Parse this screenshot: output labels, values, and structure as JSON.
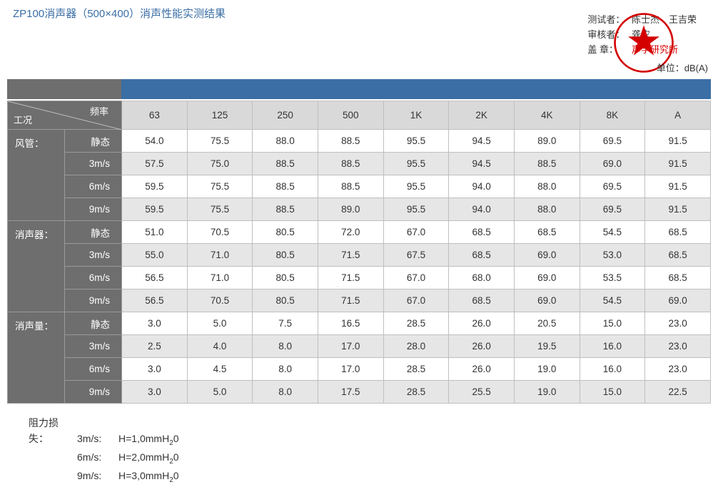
{
  "title": "ZP100消声器（500×400）消声性能实测结果",
  "header": {
    "tester_label": "测试者：",
    "tester_value": "陈士杰　王吉荣",
    "reviewer_label": "审核者：",
    "reviewer_value": "龚农",
    "seal_label": "盖 章：",
    "seal_value": "声学研究所"
  },
  "unit_label": "单位：dB(A)",
  "stamp": {
    "outer_color": "#d40000",
    "star_color": "#d40000",
    "text": "声学研究所",
    "text_color": "#d40000"
  },
  "colors": {
    "bar_left": "#6e6e6e",
    "bar_right": "#3b6ea5",
    "rowhead_bg": "#6e6e6e",
    "colhead_bg": "#d9d9d9",
    "row_odd": "#ffffff",
    "row_even": "#e6e6e6",
    "border": "#bfbfbf"
  },
  "table": {
    "diag_top": "频率",
    "diag_bottom": "工况",
    "freq_cols": [
      "63",
      "125",
      "250",
      "500",
      "1K",
      "2K",
      "4K",
      "8K",
      "A"
    ],
    "groups": [
      {
        "name": "风管：",
        "rows": [
          {
            "label": "静态",
            "vals": [
              "54.0",
              "75.5",
              "88.0",
              "88.5",
              "95.5",
              "94.5",
              "89.0",
              "69.5",
              "91.5"
            ]
          },
          {
            "label": "3m/s",
            "vals": [
              "57.5",
              "75.0",
              "88.5",
              "88.5",
              "95.5",
              "94.5",
              "88.5",
              "69.0",
              "91.5"
            ]
          },
          {
            "label": "6m/s",
            "vals": [
              "59.5",
              "75.5",
              "88.5",
              "88.5",
              "95.5",
              "94.0",
              "88.0",
              "69.5",
              "91.5"
            ]
          },
          {
            "label": "9m/s",
            "vals": [
              "59.5",
              "75.5",
              "88.5",
              "89.0",
              "95.5",
              "94.0",
              "88.0",
              "69.5",
              "91.5"
            ]
          }
        ]
      },
      {
        "name": "消声器：",
        "rows": [
          {
            "label": "静态",
            "vals": [
              "51.0",
              "70.5",
              "80.5",
              "72.0",
              "67.0",
              "68.5",
              "68.5",
              "54.5",
              "68.5"
            ]
          },
          {
            "label": "3m/s",
            "vals": [
              "55.0",
              "71.0",
              "80.5",
              "71.5",
              "67.5",
              "68.5",
              "69.0",
              "53.0",
              "68.5"
            ]
          },
          {
            "label": "6m/s",
            "vals": [
              "56.5",
              "71.0",
              "80.5",
              "71.5",
              "67.0",
              "68.0",
              "69.0",
              "53.5",
              "68.5"
            ]
          },
          {
            "label": "9m/s",
            "vals": [
              "56.5",
              "70.5",
              "80.5",
              "71.5",
              "67.0",
              "68.5",
              "69.0",
              "54.5",
              "69.0"
            ]
          }
        ]
      },
      {
        "name": "消声量：",
        "rows": [
          {
            "label": "静态",
            "vals": [
              "3.0",
              "5.0",
              "7.5",
              "16.5",
              "28.5",
              "26.0",
              "20.5",
              "15.0",
              "23.0"
            ]
          },
          {
            "label": "3m/s",
            "vals": [
              "2.5",
              "4.0",
              "8.0",
              "17.0",
              "28.0",
              "26.0",
              "19.5",
              "16.0",
              "23.0"
            ]
          },
          {
            "label": "6m/s",
            "vals": [
              "3.0",
              "4.5",
              "8.0",
              "17.0",
              "28.5",
              "26.0",
              "19.0",
              "16.0",
              "23.0"
            ]
          },
          {
            "label": "9m/s",
            "vals": [
              "3.0",
              "5.0",
              "8.0",
              "17.5",
              "28.5",
              "25.5",
              "19.0",
              "15.0",
              "22.5"
            ]
          }
        ]
      }
    ]
  },
  "footer": {
    "label": "阻力损失：",
    "lines": [
      {
        "speed": "3m/s:",
        "value": "H=1,0mmH₂0"
      },
      {
        "speed": "6m/s:",
        "value": "H=2,0mmH₂0"
      },
      {
        "speed": "9m/s:",
        "value": "H=3,0mmH₂0"
      }
    ]
  }
}
